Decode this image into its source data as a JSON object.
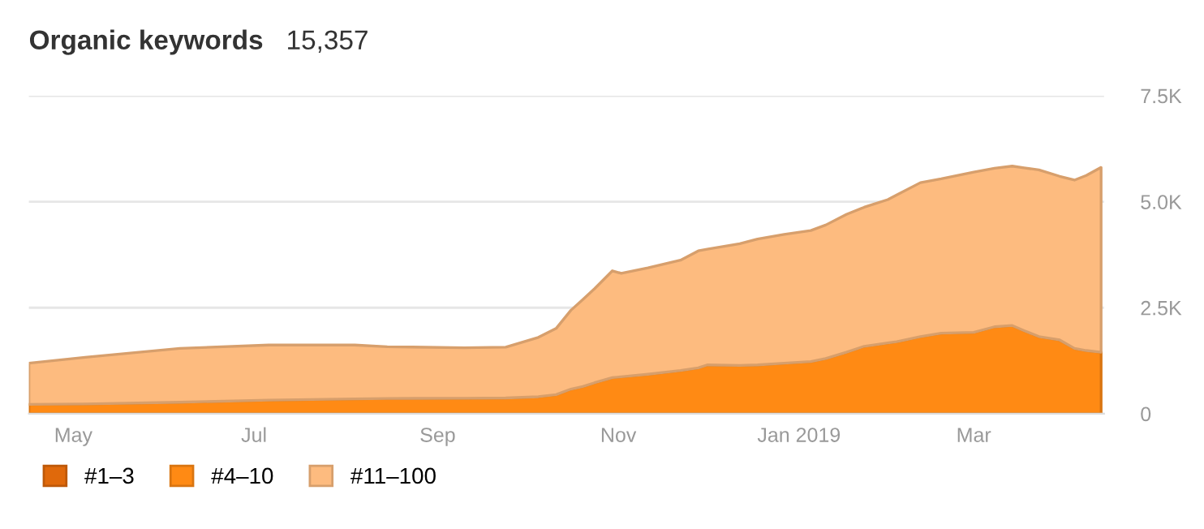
{
  "chart_data": {
    "type": "area",
    "title": "Organic keywords",
    "subtitle": "15,357",
    "stacked": true,
    "x": [
      "2018-04-16",
      "2018-05-05",
      "2018-06-06",
      "2018-07-06",
      "2018-08-04",
      "2018-08-15",
      "2018-09-10",
      "2018-09-24",
      "2018-10-05",
      "2018-10-11",
      "2018-10-16",
      "2018-10-20",
      "2018-10-24",
      "2018-10-30",
      "2018-11-02",
      "2018-11-11",
      "2018-11-22",
      "2018-11-28",
      "2018-12-01",
      "2018-12-12",
      "2018-12-18",
      "2018-12-27",
      "2019-01-05",
      "2019-01-10",
      "2019-01-17",
      "2019-01-23",
      "2019-01-31",
      "2019-02-03",
      "2019-02-11",
      "2019-02-18",
      "2019-03-01",
      "2019-03-08",
      "2019-03-14",
      "2019-03-18",
      "2019-03-23",
      "2019-03-30",
      "2019-04-04",
      "2019-04-08",
      "2019-04-13"
    ],
    "series": [
      {
        "name": "#1–3",
        "color": "#e0690b",
        "values": [
          null,
          null,
          null,
          null,
          null,
          null,
          null,
          null,
          null,
          null,
          null,
          null,
          null,
          null,
          null,
          null,
          null,
          null,
          null,
          null,
          null,
          null,
          null,
          null,
          null,
          null,
          null,
          null,
          null,
          null,
          null,
          null,
          null,
          null,
          null,
          null,
          null,
          null,
          null
        ]
      },
      {
        "name": "#4–10",
        "color": "#ff8a14",
        "values": [
          220,
          230,
          270,
          320,
          350,
          360,
          365,
          370,
          400,
          450,
          580,
          640,
          730,
          850,
          870,
          930,
          1020,
          1080,
          1150,
          1140,
          1150,
          1190,
          1230,
          1300,
          1450,
          1590,
          1670,
          1700,
          1820,
          1900,
          1920,
          2050,
          2080,
          1960,
          1820,
          1740,
          1540,
          1490,
          1450
        ]
      },
      {
        "name": "#11–100",
        "color": "#fdbb7f",
        "values": [
          970,
          1100,
          1270,
          1300,
          1270,
          1220,
          1190,
          1200,
          1400,
          1560,
          1860,
          2050,
          2220,
          2520,
          2440,
          2510,
          2600,
          2760,
          2730,
          2870,
          2970,
          3040,
          3090,
          3150,
          3250,
          3280,
          3380,
          3460,
          3630,
          3640,
          3780,
          3740,
          3760,
          3840,
          3930,
          3860,
          3970,
          4130,
          4360
        ]
      }
    ],
    "xlim": [
      "2018-04-16",
      "2019-04-14"
    ],
    "xticks": [
      {
        "value": "2018-05-01",
        "label": "May"
      },
      {
        "value": "2018-07-01",
        "label": "Jul"
      },
      {
        "value": "2018-09-01",
        "label": "Sep"
      },
      {
        "value": "2018-11-01",
        "label": "Nov"
      },
      {
        "value": "2019-01-01",
        "label": "Jan 2019"
      },
      {
        "value": "2019-03-01",
        "label": "Mar"
      }
    ],
    "ylim": [
      0,
      7500
    ],
    "yticks": [
      {
        "value": 0,
        "label": "0"
      },
      {
        "value": 2500,
        "label": "2.5K"
      },
      {
        "value": 5000,
        "label": "5.0K"
      },
      {
        "value": 7500,
        "label": "7.5K"
      }
    ],
    "grid": "y",
    "legend": "bottom left"
  }
}
